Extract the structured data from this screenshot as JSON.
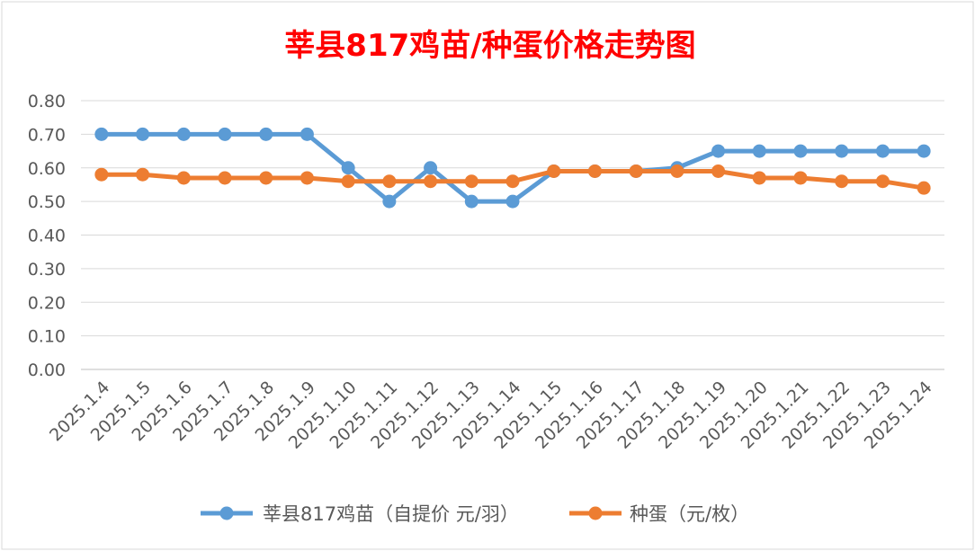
{
  "chart_data": {
    "type": "line",
    "title": "莘县817鸡苗/种蛋价格走势图",
    "xlabel": "",
    "ylabel": "",
    "ylim": [
      0,
      0.8
    ],
    "y_ticks": [
      "0.00",
      "0.10",
      "0.20",
      "0.30",
      "0.40",
      "0.50",
      "0.60",
      "0.70",
      "0.80"
    ],
    "grid": true,
    "legend_position": "bottom",
    "categories": [
      "2025.1.4",
      "2025.1.5",
      "2025.1.6",
      "2025.1.7",
      "2025.1.8",
      "2025.1.9",
      "2025.1.10",
      "2025.1.11",
      "2025.1.12",
      "2025.1.13",
      "2025.1.14",
      "2025.1.15",
      "2025.1.16",
      "2025.1.17",
      "2025.1.18",
      "2025.1.19",
      "2025.1.20",
      "2025.1.21",
      "2025.1.22",
      "2025.1.23",
      "2025.1.24"
    ],
    "series": [
      {
        "name": "莘县817鸡苗（自提价 元/羽）",
        "color": "#5b9bd5",
        "values": [
          0.7,
          0.7,
          0.7,
          0.7,
          0.7,
          0.7,
          0.6,
          0.5,
          0.6,
          0.5,
          0.5,
          0.59,
          0.59,
          0.59,
          0.6,
          0.65,
          0.65,
          0.65,
          0.65,
          0.65,
          0.65
        ]
      },
      {
        "name": "种蛋（元/枚）",
        "color": "#ed7d31",
        "values": [
          0.58,
          0.58,
          0.57,
          0.57,
          0.57,
          0.57,
          0.56,
          0.56,
          0.56,
          0.56,
          0.56,
          0.59,
          0.59,
          0.59,
          0.59,
          0.59,
          0.57,
          0.57,
          0.56,
          0.56,
          0.54
        ]
      }
    ]
  }
}
